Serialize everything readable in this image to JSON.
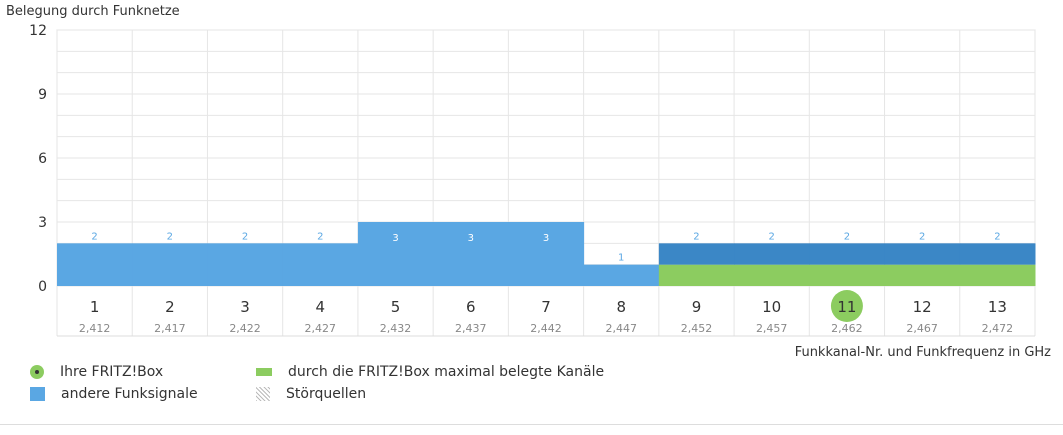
{
  "chart_data": {
    "type": "bar",
    "title": "Belegung durch Funknetze",
    "xlabel": "Funkkanal-Nr. und Funkfrequenz in GHz",
    "ylabel": "",
    "ylim": [
      0,
      12
    ],
    "yticks": [
      "0",
      "3",
      "6",
      "9",
      "12"
    ],
    "categories": [
      "1",
      "2",
      "3",
      "4",
      "5",
      "6",
      "7",
      "8",
      "9",
      "10",
      "11",
      "12",
      "13"
    ],
    "frequencies": [
      "2,412",
      "2,417",
      "2,422",
      "2,427",
      "2,432",
      "2,437",
      "2,442",
      "2,447",
      "2,452",
      "2,457",
      "2,462",
      "2,467",
      "2,472"
    ],
    "series": [
      {
        "name": "andere Funksignale",
        "values": [
          2,
          2,
          2,
          2,
          3,
          3,
          3,
          1,
          2,
          2,
          2,
          2,
          2
        ]
      },
      {
        "name": "durch die FRITZ!Box maximal belegte Kanäle",
        "values": [
          0,
          0,
          0,
          0,
          0,
          0,
          0,
          0,
          1,
          1,
          1,
          1,
          1
        ]
      }
    ],
    "data_labels": [
      "2",
      "2",
      "2",
      "2",
      "3",
      "3",
      "3",
      "1",
      "2",
      "2",
      "2",
      "2",
      "2"
    ],
    "own_channel": "11",
    "grid": true,
    "legend_position": "bottom-left"
  },
  "legend": {
    "own_box": "Ihre FRITZ!Box",
    "other_signals": "andere Funksignale",
    "max_channels": "durch die FRITZ!Box maximal belegte Kanäle",
    "interference": "Störquellen"
  },
  "colors": {
    "other_signals": "#5aa7e3",
    "other_signals_in_own_range": "#3b87c6",
    "own_range": "#8ccc60",
    "own_marker": "#8ccc60",
    "grid": "#e6e6e6",
    "text": "#333333"
  }
}
